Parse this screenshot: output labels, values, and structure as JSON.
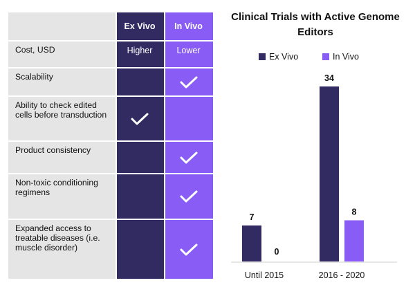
{
  "table": {
    "columns": [
      "Ex Vivo",
      "In Vivo"
    ],
    "rows": [
      {
        "label": "Cost, USD",
        "ex_vivo": "Higher",
        "in_vivo": "Lower"
      },
      {
        "label": "Scalability",
        "ex_vivo": "",
        "in_vivo": "check"
      },
      {
        "label": "Ability to check edited cells before transduction",
        "ex_vivo": "check",
        "in_vivo": ""
      },
      {
        "label": "Product consistency",
        "ex_vivo": "",
        "in_vivo": "check"
      },
      {
        "label": "Non-toxic conditioning regimens",
        "ex_vivo": "",
        "in_vivo": "check"
      },
      {
        "label": "Expanded access to treatable diseases (i.e. muscle disorder)",
        "ex_vivo": "",
        "in_vivo": "check"
      }
    ]
  },
  "chart_data": {
    "type": "bar",
    "title": "Clinical Trials with Active Genome Editors",
    "categories": [
      "Until 2015",
      "2016 - 2020"
    ],
    "series": [
      {
        "name": "Ex Vivo",
        "values": [
          7,
          34
        ]
      },
      {
        "name": "In Vivo",
        "values": [
          0,
          8
        ]
      }
    ],
    "ylim": [
      0,
      34
    ],
    "legend": "top",
    "grid": false,
    "colors": {
      "ex_vivo": "#322b62",
      "in_vivo": "#8a5cf6",
      "axis": "#cccccc"
    }
  }
}
